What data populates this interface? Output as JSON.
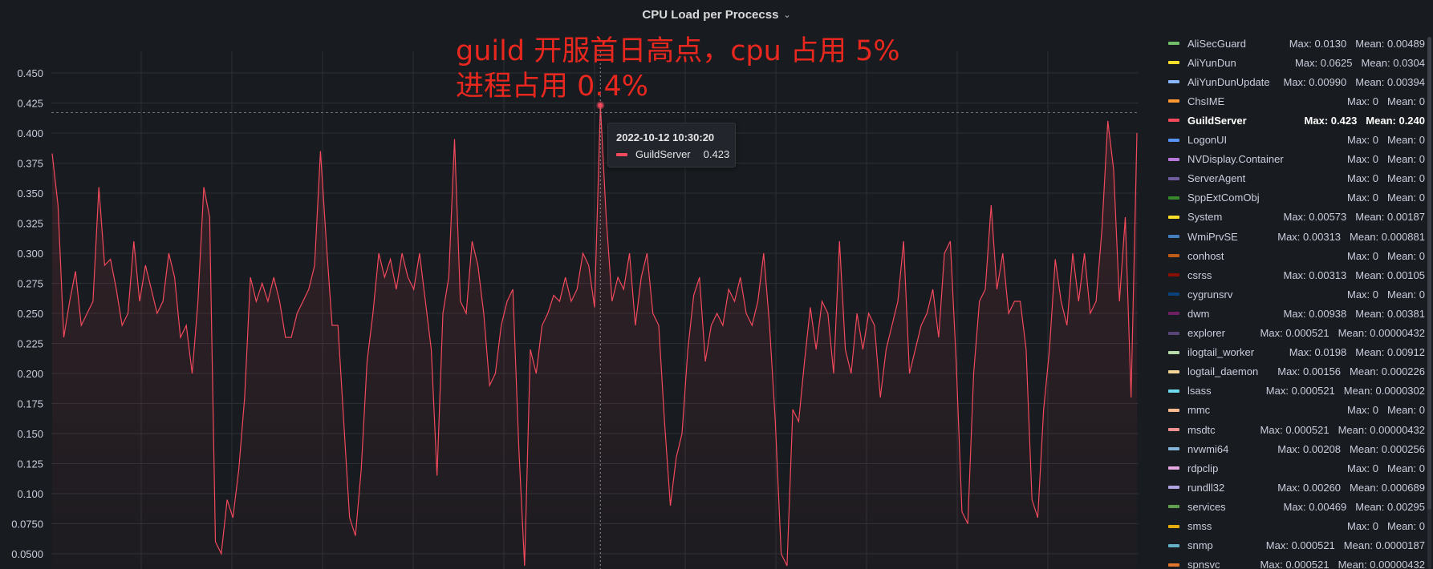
{
  "panel": {
    "title": "CPU Load per Procecss",
    "menu_icon": "chevron-down-icon"
  },
  "annotation": {
    "line1": "guild 开服首日高点，cpu 占用 5%",
    "line2": "进程占用 0.4%"
  },
  "tooltip": {
    "time": "2022-10-12 10:30:20",
    "series": "GuildServer",
    "value": "0.423",
    "color": "#f2495c"
  },
  "chart_data": {
    "type": "line",
    "title": "CPU Load per Procecss",
    "ylim": [
      0.045,
      0.48
    ],
    "yticks": [
      "0.450",
      "0.425",
      "0.400",
      "0.375",
      "0.350",
      "0.325",
      "0.300",
      "0.275",
      "0.250",
      "0.225",
      "0.200",
      "0.175",
      "0.150",
      "0.125",
      "0.100",
      "0.0750",
      "0.0500"
    ],
    "grid": true,
    "legend_position": "right",
    "threshold_line": 0.417,
    "series": [
      {
        "name": "GuildServer",
        "color": "#f2495c",
        "values": [
          0.383,
          0.34,
          0.23,
          0.26,
          0.285,
          0.24,
          0.25,
          0.26,
          0.355,
          0.29,
          0.295,
          0.27,
          0.24,
          0.25,
          0.31,
          0.26,
          0.29,
          0.27,
          0.25,
          0.26,
          0.3,
          0.28,
          0.23,
          0.24,
          0.2,
          0.26,
          0.355,
          0.33,
          0.06,
          0.05,
          0.095,
          0.08,
          0.12,
          0.18,
          0.28,
          0.26,
          0.275,
          0.26,
          0.28,
          0.26,
          0.23,
          0.23,
          0.25,
          0.26,
          0.27,
          0.29,
          0.385,
          0.31,
          0.24,
          0.24,
          0.16,
          0.08,
          0.065,
          0.12,
          0.21,
          0.25,
          0.3,
          0.28,
          0.295,
          0.27,
          0.3,
          0.28,
          0.27,
          0.3,
          0.26,
          0.22,
          0.115,
          0.25,
          0.28,
          0.395,
          0.26,
          0.25,
          0.31,
          0.29,
          0.25,
          0.19,
          0.2,
          0.24,
          0.26,
          0.27,
          0.14,
          0.04,
          0.22,
          0.2,
          0.24,
          0.25,
          0.265,
          0.26,
          0.28,
          0.26,
          0.27,
          0.3,
          0.29,
          0.255,
          0.423,
          0.33,
          0.26,
          0.28,
          0.27,
          0.3,
          0.24,
          0.28,
          0.3,
          0.25,
          0.24,
          0.16,
          0.09,
          0.13,
          0.15,
          0.22,
          0.265,
          0.28,
          0.21,
          0.24,
          0.25,
          0.24,
          0.27,
          0.26,
          0.28,
          0.25,
          0.24,
          0.26,
          0.3,
          0.24,
          0.16,
          0.05,
          0.04,
          0.17,
          0.16,
          0.21,
          0.255,
          0.22,
          0.26,
          0.25,
          0.2,
          0.31,
          0.22,
          0.2,
          0.25,
          0.22,
          0.25,
          0.24,
          0.18,
          0.22,
          0.24,
          0.26,
          0.31,
          0.2,
          0.22,
          0.24,
          0.25,
          0.27,
          0.23,
          0.3,
          0.31,
          0.21,
          0.085,
          0.075,
          0.2,
          0.26,
          0.27,
          0.34,
          0.27,
          0.3,
          0.25,
          0.26,
          0.26,
          0.22,
          0.095,
          0.08,
          0.17,
          0.22,
          0.295,
          0.26,
          0.24,
          0.3,
          0.26,
          0.3,
          0.25,
          0.26,
          0.32,
          0.41,
          0.37,
          0.26,
          0.33,
          0.18,
          0.4
        ]
      }
    ]
  },
  "legend": {
    "items": [
      {
        "name": "AliSecGuard",
        "max": "Max: 0.0130",
        "mean": "Mean: 0.00489",
        "color": "#73bf69"
      },
      {
        "name": "AliYunDun",
        "max": "Max: 0.0625",
        "mean": "Mean: 0.0304",
        "color": "#fade2a"
      },
      {
        "name": "AliYunDunUpdate",
        "max": "Max: 0.00990",
        "mean": "Mean: 0.00394",
        "color": "#8ab8ff"
      },
      {
        "name": "ChsIME",
        "max": "Max: 0",
        "mean": "Mean: 0",
        "color": "#ff9830"
      },
      {
        "name": "GuildServer",
        "max": "Max: 0.423",
        "mean": "Mean: 0.240",
        "color": "#f2495c"
      },
      {
        "name": "LogonUI",
        "max": "Max: 0",
        "mean": "Mean: 0",
        "color": "#5794f2"
      },
      {
        "name": "NVDisplay.Container",
        "max": "Max: 0",
        "mean": "Mean: 0",
        "color": "#b877d9"
      },
      {
        "name": "ServerAgent",
        "max": "Max: 0",
        "mean": "Mean: 0",
        "color": "#705da0"
      },
      {
        "name": "SppExtComObj",
        "max": "Max: 0",
        "mean": "Mean: 0",
        "color": "#37872d"
      },
      {
        "name": "System",
        "max": "Max: 0.00573",
        "mean": "Mean: 0.00187",
        "color": "#fade2a"
      },
      {
        "name": "WmiPrvSE",
        "max": "Max: 0.00313",
        "mean": "Mean: 0.000881",
        "color": "#447ebc"
      },
      {
        "name": "conhost",
        "max": "Max: 0",
        "mean": "Mean: 0",
        "color": "#c15c17"
      },
      {
        "name": "csrss",
        "max": "Max: 0.00313",
        "mean": "Mean: 0.00105",
        "color": "#890f02"
      },
      {
        "name": "cygrunsrv",
        "max": "Max: 0",
        "mean": "Mean: 0",
        "color": "#0a437c"
      },
      {
        "name": "dwm",
        "max": "Max: 0.00938",
        "mean": "Mean: 0.00381",
        "color": "#6d1f62"
      },
      {
        "name": "explorer",
        "max": "Max: 0.000521",
        "mean": "Mean: 0.00000432",
        "color": "#584477"
      },
      {
        "name": "ilogtail_worker",
        "max": "Max: 0.0198",
        "mean": "Mean: 0.00912",
        "color": "#b7dbab"
      },
      {
        "name": "logtail_daemon",
        "max": "Max: 0.00156",
        "mean": "Mean: 0.000226",
        "color": "#f4d598"
      },
      {
        "name": "lsass",
        "max": "Max: 0.000521",
        "mean": "Mean: 0.0000302",
        "color": "#70dbed"
      },
      {
        "name": "mmc",
        "max": "Max: 0",
        "mean": "Mean: 0",
        "color": "#f9ba8f"
      },
      {
        "name": "msdtc",
        "max": "Max: 0.000521",
        "mean": "Mean: 0.00000432",
        "color": "#f29191"
      },
      {
        "name": "nvwmi64",
        "max": "Max: 0.00208",
        "mean": "Mean: 0.000256",
        "color": "#82b5d8"
      },
      {
        "name": "rdpclip",
        "max": "Max: 0",
        "mean": "Mean: 0",
        "color": "#e5a8e2"
      },
      {
        "name": "rundll32",
        "max": "Max: 0.00260",
        "mean": "Mean: 0.000689",
        "color": "#aea2e0"
      },
      {
        "name": "services",
        "max": "Max: 0.00469",
        "mean": "Mean: 0.00295",
        "color": "#629e51"
      },
      {
        "name": "smss",
        "max": "Max: 0",
        "mean": "Mean: 0",
        "color": "#e5ac0e"
      },
      {
        "name": "snmp",
        "max": "Max: 0.000521",
        "mean": "Mean: 0.0000187",
        "color": "#64b0c8"
      },
      {
        "name": "spnsvc",
        "max": "Max: 0.000521",
        "mean": "Mean: 0.00000432",
        "color": "#e0752d"
      }
    ]
  }
}
